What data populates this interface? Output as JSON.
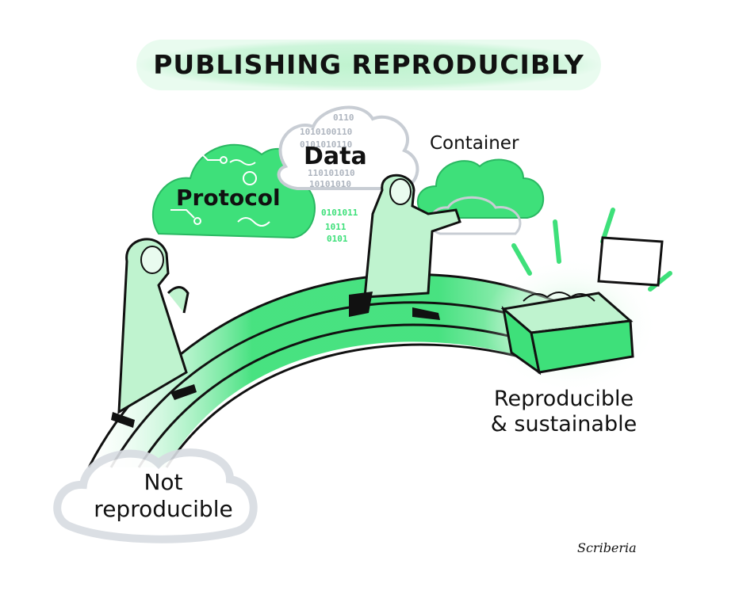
{
  "title": "PUBLISHING REPRODUCIBLY",
  "labels": {
    "protocol": "Protocol",
    "data": "Data",
    "container": "Container",
    "good_line1": "Reproducible",
    "good_line2": "& sustainable",
    "bad_line1": "Not",
    "bad_line2": "reproducible"
  },
  "signature": "Scriberia",
  "binary_digits": [
    "0110",
    "1010100110",
    "0101010110",
    "110101010",
    "10101010",
    "0101011",
    "1011",
    "0101"
  ],
  "colors": {
    "green": "#3ee07a",
    "green_light": "#bff3cf",
    "green_pale": "#dff8e7",
    "outline": "#111111",
    "cloud_grey": "#c8cdd4"
  }
}
